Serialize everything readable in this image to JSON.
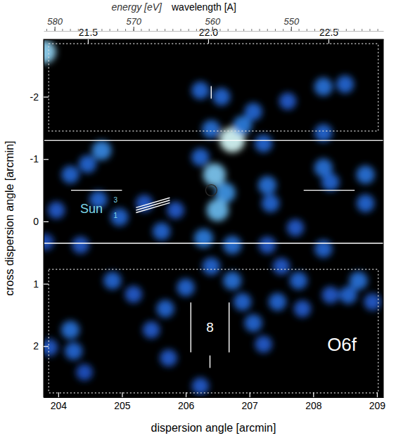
{
  "chart_data": {
    "type": "scatter",
    "marker": "blob",
    "xlabel": "dispersion angle  [arcmin]",
    "ylabel": "cross dispersion angle  [arcmin]",
    "xlim": [
      203.77,
      209.1
    ],
    "xticks": [
      204,
      205,
      206,
      207,
      208,
      209
    ],
    "ylim": [
      -2.92,
      2.82
    ],
    "yticks": [
      -2,
      -1,
      0,
      1,
      2
    ],
    "energy_axis": {
      "label": "energy [eV]",
      "lim": [
        581.4,
        538.3
      ],
      "ticks": [
        580,
        570,
        560,
        550
      ],
      "minor_ticks": [
        539,
        540,
        541,
        542,
        543,
        544,
        545,
        546,
        547,
        548,
        549,
        550,
        551,
        552,
        553,
        554,
        555,
        556,
        557,
        558,
        559,
        560,
        561,
        562,
        563,
        564,
        565,
        566,
        567,
        568,
        569,
        570,
        571,
        572,
        573,
        574,
        575,
        576,
        577,
        578,
        579,
        580,
        581
      ]
    },
    "wavelength_axis": {
      "label": "wavelength  [A]",
      "lim": [
        21.316,
        22.728
      ],
      "ticks": [
        21.5,
        {
          "value": 22,
          "label": "22.0"
        },
        22.5
      ]
    },
    "intensity_range": [
      0,
      1
    ],
    "x": [
      203.78,
      206.23,
      206.56,
      206.4,
      206.73,
      206.89,
      207.06,
      207.22,
      207.6,
      208.16,
      208.5,
      208.16,
      204.68,
      204.46,
      204.19,
      206.45,
      206.62,
      206.5,
      206.23,
      207.28,
      207.33,
      208.16,
      208.27,
      208.82,
      208.82,
      204.63,
      204.96,
      205.62,
      205.84,
      205.35,
      203.97,
      204.35,
      203.8,
      206.28,
      206.73,
      206.4,
      206.0,
      205.68,
      206.73,
      206.89,
      207.06,
      207.22,
      204.85,
      205.18,
      205.46,
      204.19,
      204.24,
      203.86,
      204.41,
      205.73,
      206.23,
      207.77,
      207.44,
      207.83,
      208.27,
      208.71,
      208.55,
      208.16,
      207.5,
      207.28,
      207.72,
      208.93
    ],
    "y": [
      -2.72,
      -2.1,
      -2.0,
      -1.48,
      -1.31,
      -1.54,
      -1.76,
      -1.25,
      -1.93,
      -2.16,
      -2.2,
      -1.42,
      -1.14,
      -0.92,
      -0.75,
      -0.75,
      -0.46,
      -0.18,
      -1.03,
      -0.58,
      -0.29,
      -0.86,
      -0.63,
      -0.75,
      -0.29,
      -0.35,
      -0.07,
      0.16,
      -0.18,
      -0.29,
      -0.18,
      0.38,
      0.33,
      0.27,
      0.38,
      0.72,
      1.06,
      1.4,
      0.95,
      1.29,
      1.63,
      1.97,
      0.95,
      1.17,
      1.74,
      1.74,
      2.08,
      2.02,
      2.42,
      2.19,
      2.64,
      0.95,
      1.29,
      1.4,
      1.18,
      0.95,
      1.18,
      0.44,
      0.72,
      0.38,
      0.1,
      1.29
    ],
    "intensity": [
      0.85,
      0.4,
      0.4,
      0.45,
      1.0,
      0.5,
      0.4,
      0.4,
      0.35,
      0.45,
      0.4,
      0.4,
      0.55,
      0.4,
      0.4,
      0.8,
      0.6,
      0.75,
      0.4,
      0.45,
      0.4,
      0.45,
      0.4,
      0.45,
      0.4,
      0.4,
      0.4,
      0.4,
      0.35,
      0.35,
      0.35,
      0.35,
      0.3,
      0.5,
      0.45,
      0.4,
      0.4,
      0.4,
      0.45,
      0.4,
      0.4,
      0.35,
      0.4,
      0.35,
      0.35,
      0.45,
      0.4,
      0.35,
      0.3,
      0.35,
      0.35,
      0.4,
      0.4,
      0.35,
      0.35,
      0.45,
      0.4,
      0.4,
      0.35,
      0.35,
      0.35,
      0.35
    ],
    "hlines": [
      {
        "y": -1.3
      },
      {
        "y": 0.35
      }
    ],
    "boxes": [
      {
        "x1": 203.85,
        "x2": 209.02,
        "y1": -2.85,
        "y2": -1.45
      },
      {
        "x1": 203.85,
        "x2": 209.02,
        "y1": 0.77,
        "y2": 2.75
      }
    ],
    "segments": [
      {
        "x1": 204.2,
        "y1": -0.5,
        "x2": 205.0,
        "y2": -0.5
      },
      {
        "x1": 207.85,
        "y1": -0.5,
        "x2": 208.65,
        "y2": -0.5
      },
      {
        "x1": 205.22,
        "y1": -0.14,
        "x2": 205.75,
        "y2": -0.3
      },
      {
        "x1": 205.22,
        "y1": -0.18,
        "x2": 205.75,
        "y2": -0.34
      },
      {
        "x1": 205.22,
        "y1": -0.22,
        "x2": 205.75,
        "y2": -0.38
      },
      {
        "x1": 206.08,
        "y1": 1.3,
        "x2": 206.08,
        "y2": 2.1
      },
      {
        "x1": 206.68,
        "y1": 1.3,
        "x2": 206.68,
        "y2": 2.1
      },
      {
        "x1": 206.38,
        "y1": 2.15,
        "x2": 206.38,
        "y2": 2.35
      },
      {
        "x1": 206.4,
        "y1": -2.17,
        "x2": 206.4,
        "y2": -1.97
      }
    ],
    "circles": [
      {
        "x": 206.4,
        "y": -0.5
      }
    ],
    "annotations": [
      {
        "text": "Sun",
        "x": 204.52,
        "y": -0.2,
        "color": "#7fd8ea"
      },
      {
        "text": "3",
        "x": 204.9,
        "y": -0.34,
        "color": "#7fd8ea"
      },
      {
        "text": "1",
        "x": 204.9,
        "y": -0.1,
        "color": "#7fd8ea"
      },
      {
        "text": "8",
        "x": 206.38,
        "y": 1.7,
        "color": "#ffffff"
      },
      {
        "text": "O6f",
        "x": 208.45,
        "y": 1.97,
        "color": "#ffffff"
      }
    ]
  }
}
